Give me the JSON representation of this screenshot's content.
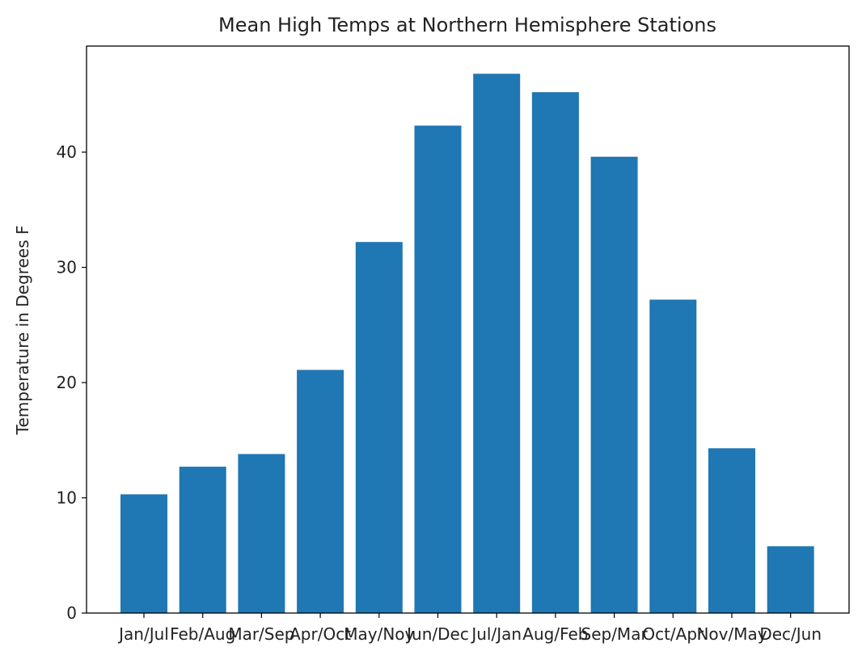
{
  "chart_data": {
    "type": "bar",
    "title": "Mean High Temps at Northern Hemisphere Stations",
    "xlabel": "",
    "ylabel": "Temperature in Degrees F",
    "categories": [
      "Jan/Jul",
      "Feb/Aug",
      "Mar/Sep",
      "Apr/Oct",
      "May/Nov",
      "Jun/Dec",
      "Jul/Jan",
      "Aug/Feb",
      "Sep/Mar",
      "Oct/Apr",
      "Nov/May",
      "Dec/Jun"
    ],
    "values": [
      10.3,
      12.7,
      13.8,
      21.1,
      32.2,
      42.3,
      46.8,
      45.2,
      39.6,
      27.2,
      14.3,
      5.8
    ],
    "yticks": [
      0,
      10,
      20,
      30,
      40
    ],
    "ylim": [
      0,
      49.2
    ],
    "grid": false,
    "bar_color": "#1f77b4"
  }
}
